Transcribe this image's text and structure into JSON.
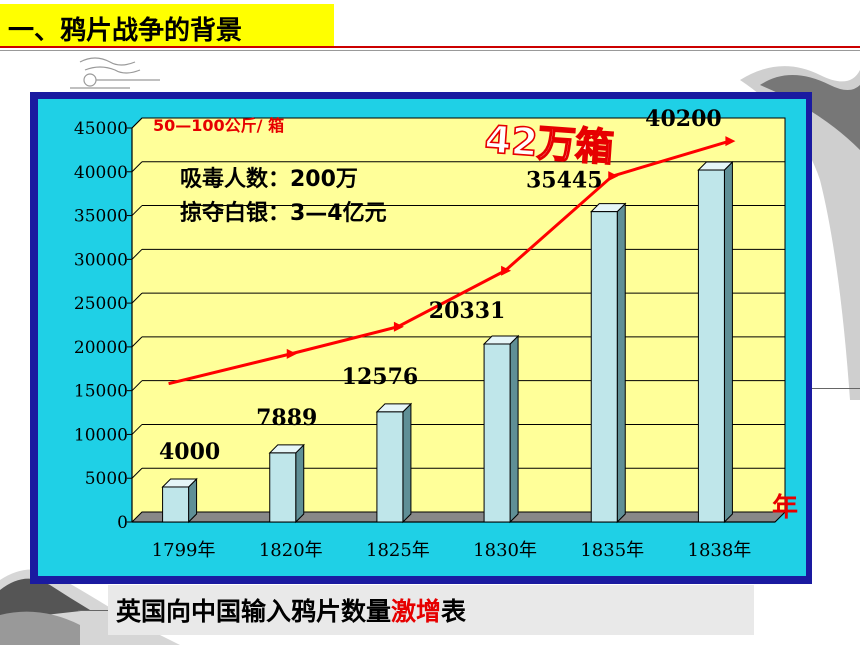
{
  "slide": {
    "title": "一、鸦片战争的背景",
    "caption_prefix": "英国向中国输入鸦片数量",
    "caption_highlight": "激增",
    "caption_suffix": "表"
  },
  "colors": {
    "title_bg": "#ffff00",
    "frame": "#1a1aa0",
    "frame_inner": "#1fd0e6",
    "plot_bg": "#ffff99",
    "bar_front": "#bfe6ea",
    "bar_side": "#5f8f96",
    "trend_line": "#ff0000",
    "highlight": "#e60000"
  },
  "chart_data": {
    "type": "bar",
    "categories": [
      "1799年",
      "1820年",
      "1825年",
      "1830年",
      "1835年",
      "1838年"
    ],
    "values": [
      4000,
      7889,
      12576,
      20331,
      35445,
      40200
    ],
    "value_labels": [
      "4000",
      "7889",
      "12576",
      "20331",
      "35445",
      "40200"
    ],
    "ylim": [
      0,
      45000
    ],
    "yticks": [
      0,
      5000,
      10000,
      15000,
      20000,
      25000,
      30000,
      35000,
      40000,
      45000
    ],
    "grid": true,
    "trend_line": [
      15800,
      19200,
      22300,
      28700,
      39500,
      43500
    ],
    "unit_note": "50—100公斤/ 箱",
    "x_unit": "年",
    "big_annotation": "42万箱",
    "annotations": [
      "吸毒人数：200万",
      "掠夺白银：3—4亿元"
    ]
  }
}
